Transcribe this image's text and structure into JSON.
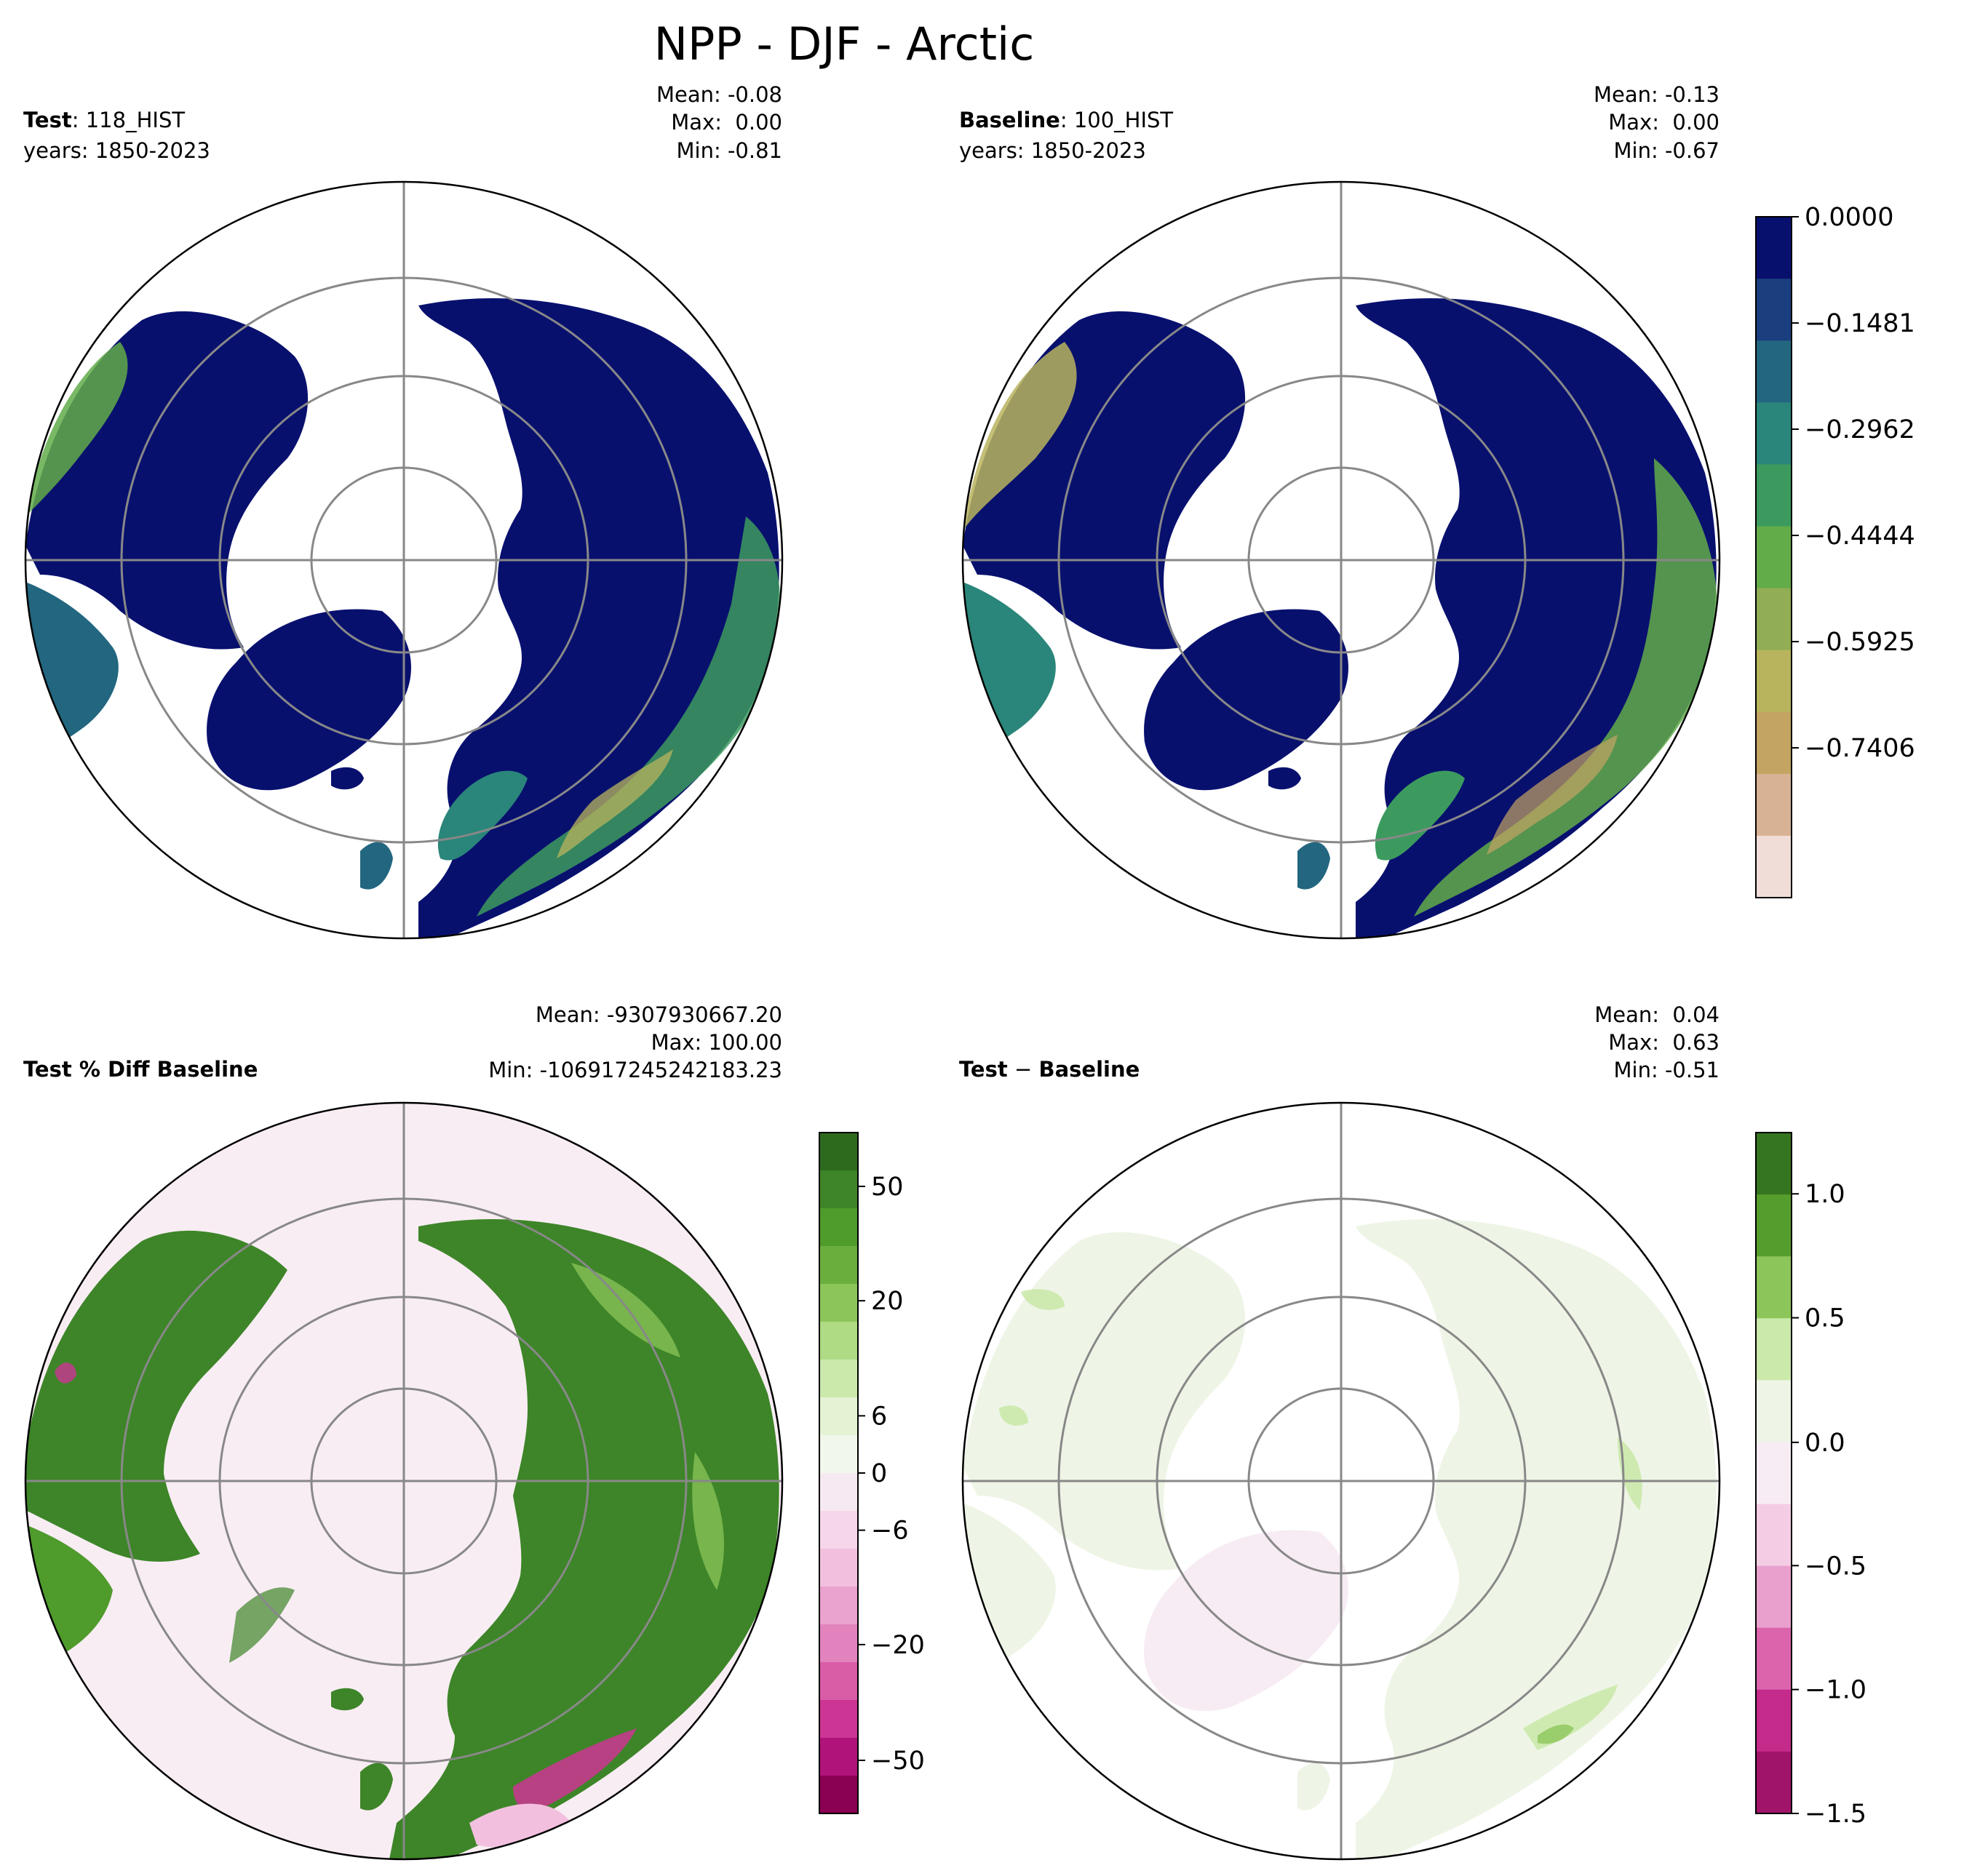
{
  "title": "NPP - DJF - Arctic",
  "panels": [
    {
      "label_bold": "Test",
      "label_sep": ": ",
      "label_value": "118_HIST",
      "years": "years: 1850-2023",
      "stats": [
        "Mean: -0.08",
        "Max:  0.00",
        "Min: -0.81"
      ],
      "palette": "abs"
    },
    {
      "label_bold": "Baseline",
      "label_sep": ": ",
      "label_value": "100_HIST",
      "years": "years: 1850-2023",
      "stats": [
        "Mean: -0.13",
        "Max:  0.00",
        "Min: -0.67"
      ],
      "palette": "abs"
    },
    {
      "label_bold": "Test % Diff Baseline",
      "label_sep": "",
      "label_value": "",
      "years": "",
      "stats": [
        "Mean: -9307930667.20",
        "Max: 100.00",
        "Min: -106917245242183.23"
      ],
      "palette": "pct"
    },
    {
      "label_bold": "Test",
      "label_sep": " − ",
      "label_value": "Baseline",
      "label_value_bold": true,
      "years": "",
      "stats": [
        "Mean:  0.04",
        "Max:  0.63",
        "Min: -0.51"
      ],
      "palette": "diff"
    }
  ],
  "colorbars": {
    "abs": {
      "ticks": [
        "0.0000",
        "−0.1481",
        "−0.2962",
        "−0.4444",
        "−0.5925",
        "−0.7406"
      ],
      "colors": [
        "#08106e",
        "#1a3e7e",
        "#22667f",
        "#2a857a",
        "#3c9a5e",
        "#62ac4a",
        "#91ad55",
        "#b8b45e",
        "#c4a462",
        "#d8b294",
        "#f1ddd7"
      ]
    },
    "pct": {
      "ticks": [
        "50",
        "20",
        "6",
        "0",
        "−6",
        "−20",
        "−50"
      ],
      "colors": [
        "#2d6a1e",
        "#3d8528",
        "#4f9b2c",
        "#6aaf3e",
        "#8cc55a",
        "#aedb84",
        "#cbe9ab",
        "#e4f3d4",
        "#f1f7ea",
        "#f7e9f2",
        "#f6d6e9",
        "#f2c0de",
        "#eaa3cf",
        "#e283be",
        "#d95ca7",
        "#cc3593",
        "#b0137a",
        "#8a0052"
      ]
    },
    "diff": {
      "ticks": [
        "1.0",
        "0.5",
        "0.0",
        "−0.5",
        "−1.0",
        "−1.5"
      ],
      "colors": [
        "#36751f",
        "#559e2e",
        "#8cc55a",
        "#cbe9ab",
        "#eef5e6",
        "#f7ecf3",
        "#f4cde4",
        "#e9a0cc",
        "#db64ad",
        "#c42b8b",
        "#a0146a"
      ]
    }
  }
}
